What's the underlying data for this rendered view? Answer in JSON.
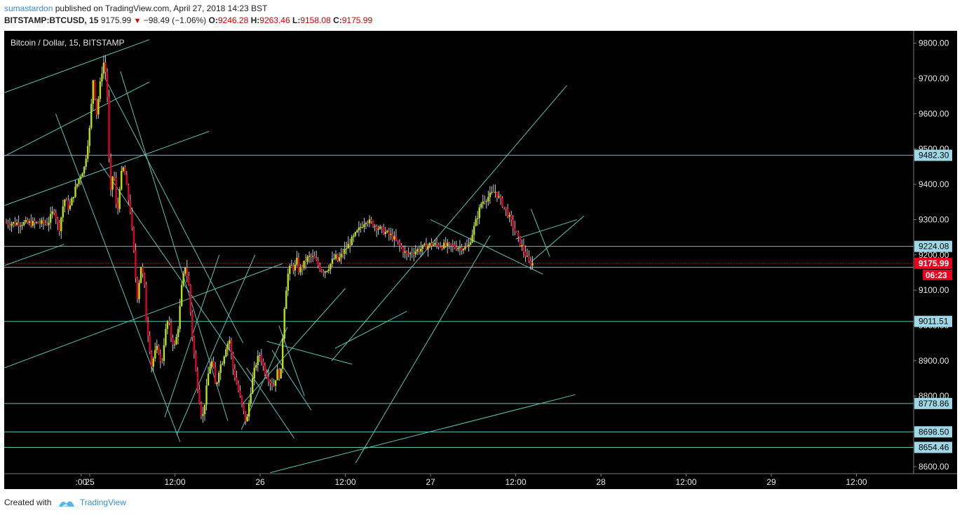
{
  "header": {
    "author": "sumastardon",
    "published_text": "published on TradingView.com, April 27, 2018 14:23 BST",
    "symbol": "BITSTAMP:BTCUSD, 15",
    "last": "9175.99",
    "change": "−98.49 (−1.06%)",
    "open_label": "O:",
    "open": "9246.28",
    "high_label": "H:",
    "high": "9263.46",
    "low_label": "L:",
    "low": "9158.08",
    "close_label": "C:",
    "close": "9175.99"
  },
  "chart_title": "Bitcoin / Dollar, 15, BITSTAMP",
  "footer": {
    "created_with": "Created with",
    "brand": "TradingView"
  },
  "colors": {
    "background": "#000000",
    "up": "#b7e400",
    "down": "#e0002a",
    "wick": "#c8c8c8",
    "drawing": "#5ec2b4",
    "price_tag_bg": "#9fd8e6",
    "last_price_tag": "#e8001e"
  },
  "chart_data": {
    "type": "candlestick",
    "title": "Bitcoin / Dollar, 15, BITSTAMP",
    "ylim": [
      8580,
      9835
    ],
    "y_ticks": [
      "8600.00",
      "8700.00",
      "8800.00",
      "8900.00",
      "9000.00",
      "9100.00",
      "9200.00",
      "9300.00",
      "9400.00",
      "9500.00",
      "9600.00",
      "9700.00",
      "9800.00"
    ],
    "x_ticks": [
      {
        "label": ":00",
        "t": -0.05
      },
      {
        "label": "25",
        "t": 0
      },
      {
        "label": "12:00",
        "t": 0.5
      },
      {
        "label": "26",
        "t": 1
      },
      {
        "label": "12:00",
        "t": 1.5
      },
      {
        "label": "27",
        "t": 2
      },
      {
        "label": "12:00",
        "t": 2.5
      },
      {
        "label": "28",
        "t": 3
      },
      {
        "label": "12:00",
        "t": 3.5
      },
      {
        "label": "29",
        "t": 4
      },
      {
        "label": "12:00",
        "t": 4.5
      }
    ],
    "horizontal_levels": [
      "9482.30",
      "9224.08",
      "9011.51",
      "8778.86",
      "8698.50",
      "8654.46"
    ],
    "last_price": "9175.99",
    "countdown": "06:23",
    "price_path": [
      [
        -0.245,
        9290
      ],
      [
        -0.21,
        9330
      ],
      [
        -0.18,
        9270
      ],
      [
        -0.15,
        9360
      ],
      [
        -0.12,
        9330
      ],
      [
        -0.09,
        9380
      ],
      [
        -0.06,
        9420
      ],
      [
        -0.03,
        9450
      ],
      [
        0.0,
        9560
      ],
      [
        0.02,
        9700
      ],
      [
        0.04,
        9600
      ],
      [
        0.06,
        9680
      ],
      [
        0.08,
        9750
      ],
      [
        0.1,
        9700
      ],
      [
        0.11,
        9520
      ],
      [
        0.12,
        9360
      ],
      [
        0.14,
        9450
      ],
      [
        0.16,
        9300
      ],
      [
        0.18,
        9420
      ],
      [
        0.2,
        9450
      ],
      [
        0.22,
        9380
      ],
      [
        0.24,
        9320
      ],
      [
        0.26,
        9200
      ],
      [
        0.27,
        9130
      ],
      [
        0.28,
        9080
      ],
      [
        0.3,
        9170
      ],
      [
        0.32,
        9120
      ],
      [
        0.33,
        9020
      ],
      [
        0.35,
        8950
      ],
      [
        0.36,
        8880
      ],
      [
        0.38,
        8920
      ],
      [
        0.4,
        8940
      ],
      [
        0.42,
        8880
      ],
      [
        0.44,
        8970
      ],
      [
        0.46,
        9020
      ],
      [
        0.48,
        8960
      ],
      [
        0.5,
        8940
      ],
      [
        0.52,
        9000
      ],
      [
        0.54,
        9110
      ],
      [
        0.56,
        9170
      ],
      [
        0.58,
        9120
      ],
      [
        0.6,
        8980
      ],
      [
        0.62,
        8880
      ],
      [
        0.64,
        8800
      ],
      [
        0.66,
        8730
      ],
      [
        0.68,
        8800
      ],
      [
        0.7,
        8880
      ],
      [
        0.72,
        8900
      ],
      [
        0.74,
        8820
      ],
      [
        0.76,
        8880
      ],
      [
        0.78,
        8900
      ],
      [
        0.8,
        8940
      ],
      [
        0.82,
        8960
      ],
      [
        0.84,
        8880
      ],
      [
        0.86,
        8840
      ],
      [
        0.88,
        8800
      ],
      [
        0.9,
        8760
      ],
      [
        0.92,
        8720
      ],
      [
        0.94,
        8800
      ],
      [
        0.96,
        8860
      ],
      [
        0.98,
        8900
      ],
      [
        1.0,
        8920
      ],
      [
        1.02,
        8880
      ],
      [
        1.04,
        8860
      ],
      [
        1.06,
        8840
      ],
      [
        1.08,
        8830
      ],
      [
        1.1,
        8870
      ],
      [
        1.12,
        8850
      ],
      [
        1.14,
        9040
      ],
      [
        1.16,
        9140
      ],
      [
        1.18,
        9170
      ],
      [
        1.2,
        9160
      ],
      [
        1.22,
        9190
      ]
    ],
    "candle_path": [
      [
        -0.49,
        9280
      ],
      [
        -0.45,
        9320
      ],
      [
        -0.41,
        9240
      ],
      [
        -0.37,
        9350
      ],
      [
        -0.33,
        9300
      ],
      [
        -0.29,
        9330
      ],
      [
        -0.25,
        9380
      ],
      [
        -0.21,
        9410
      ],
      [
        -0.17,
        9420
      ],
      [
        -0.13,
        9460
      ],
      [
        -0.09,
        9500
      ],
      [
        -0.05,
        9560
      ],
      [
        -0.02,
        9650
      ],
      [
        0.02,
        9590
      ],
      [
        0.05,
        9680
      ],
      [
        0.08,
        9760
      ],
      [
        0.1,
        9640
      ],
      [
        0.11,
        9530
      ],
      [
        0.12,
        9330
      ],
      [
        0.14,
        9460
      ],
      [
        0.16,
        9300
      ],
      [
        0.18,
        9440
      ],
      [
        0.2,
        9440
      ],
      [
        0.22,
        9390
      ],
      [
        0.24,
        9330
      ],
      [
        0.26,
        9210
      ],
      [
        0.27,
        9120
      ],
      [
        0.28,
        9060
      ],
      [
        0.3,
        9170
      ],
      [
        0.32,
        9110
      ],
      [
        0.33,
        9030
      ],
      [
        0.35,
        8940
      ],
      [
        0.36,
        8870
      ],
      [
        0.38,
        8910
      ],
      [
        0.4,
        8930
      ],
      [
        0.42,
        8880
      ],
      [
        0.44,
        8970
      ],
      [
        0.46,
        9030
      ],
      [
        0.48,
        8960
      ],
      [
        0.5,
        8930
      ],
      [
        0.52,
        9010
      ],
      [
        0.54,
        9110
      ],
      [
        0.56,
        9170
      ],
      [
        0.58,
        9110
      ],
      [
        0.6,
        8980
      ],
      [
        0.62,
        8870
      ],
      [
        0.64,
        8790
      ],
      [
        0.66,
        8720
      ],
      [
        0.68,
        8800
      ],
      [
        0.7,
        8890
      ],
      [
        0.72,
        8920
      ],
      [
        0.74,
        8840
      ],
      [
        0.76,
        8880
      ],
      [
        0.78,
        8910
      ],
      [
        0.8,
        8940
      ],
      [
        0.82,
        8960
      ],
      [
        0.84,
        8880
      ],
      [
        0.86,
        8820
      ],
      [
        0.88,
        8780
      ],
      [
        0.9,
        8740
      ],
      [
        0.92,
        8700
      ],
      [
        0.94,
        8800
      ],
      [
        0.96,
        8870
      ],
      [
        0.98,
        8910
      ],
      [
        1.0,
        8930
      ],
      [
        1.02,
        8880
      ],
      [
        1.04,
        8850
      ],
      [
        1.06,
        8830
      ],
      [
        1.08,
        8810
      ],
      [
        1.1,
        8860
      ],
      [
        1.12,
        8840
      ]
    ]
  }
}
